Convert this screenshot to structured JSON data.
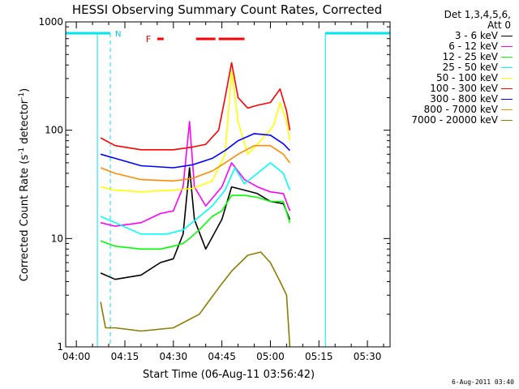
{
  "chart_data": {
    "type": "line",
    "title": "HESSI Observing Summary Count Rates, Corrected",
    "xlabel": "Start Time (06-Aug-11 03:56:42)",
    "ylabel_main": "Corrected Count Rate (s",
    "ylabel_sup1": "-1",
    "ylabel_mid": " detector",
    "ylabel_sup2": "-1",
    "ylabel_end": ")",
    "yscale": "log",
    "ylim": [
      1,
      1000
    ],
    "xlim": [
      "03:56:42",
      "05:37:00"
    ],
    "x_tick_labels": [
      "04:00",
      "04:15",
      "04:30",
      "04:45",
      "05:00",
      "05:15",
      "05:30"
    ],
    "y_tick_labels": [
      "1",
      "10",
      "100",
      "1000"
    ],
    "detector_header": [
      "Det 1,3,4,5,6,",
      "Att 0"
    ],
    "flag_labels": {
      "night": "N",
      "flare": "F"
    },
    "night_intervals": [
      [
        "03:56:42",
        "04:10:30"
      ],
      [
        "05:17:00",
        "05:37:00"
      ]
    ],
    "flare_flag_intervals": [
      [
        "04:25:00",
        "04:27:00"
      ],
      [
        "04:37:00",
        "04:43:00"
      ],
      [
        "04:44:00",
        "04:52:00"
      ]
    ],
    "data_start": "04:07:30",
    "data_end": "05:06:00",
    "series": [
      {
        "name": "3 - 6 keV",
        "color": "#000000",
        "points": [
          [
            "04:07:30",
            4.8
          ],
          [
            "04:12:00",
            4.2
          ],
          [
            "04:20:00",
            4.6
          ],
          [
            "04:26:00",
            6.0
          ],
          [
            "04:30:00",
            6.5
          ],
          [
            "04:33:00",
            11.0
          ],
          [
            "04:35:00",
            45.0
          ],
          [
            "04:36:30",
            15.0
          ],
          [
            "04:40:00",
            8.0
          ],
          [
            "04:45:00",
            15.0
          ],
          [
            "04:48:00",
            30.0
          ],
          [
            "04:52:00",
            28.0
          ],
          [
            "04:56:00",
            26.0
          ],
          [
            "05:00:00",
            22.0
          ],
          [
            "05:04:00",
            21.0
          ],
          [
            "05:06:00",
            15.0
          ]
        ]
      },
      {
        "name": "6 - 12 keV",
        "color": "#ff00ff",
        "points": [
          [
            "04:07:30",
            14.0
          ],
          [
            "04:12:00",
            13.0
          ],
          [
            "04:20:00",
            14.0
          ],
          [
            "04:26:00",
            17.0
          ],
          [
            "04:30:00",
            18.0
          ],
          [
            "04:33:00",
            30.0
          ],
          [
            "04:35:00",
            120.0
          ],
          [
            "04:36:30",
            30.0
          ],
          [
            "04:40:00",
            20.0
          ],
          [
            "04:45:00",
            30.0
          ],
          [
            "04:48:00",
            50.0
          ],
          [
            "04:52:00",
            35.0
          ],
          [
            "04:56:00",
            30.0
          ],
          [
            "05:00:00",
            27.0
          ],
          [
            "05:04:00",
            26.0
          ],
          [
            "05:06:00",
            18.0
          ]
        ]
      },
      {
        "name": "12 - 25 keV",
        "color": "#00ff00",
        "points": [
          [
            "04:07:30",
            9.5
          ],
          [
            "04:12:00",
            8.5
          ],
          [
            "04:20:00",
            8.0
          ],
          [
            "04:26:00",
            8.0
          ],
          [
            "04:30:00",
            8.5
          ],
          [
            "04:33:00",
            9.0
          ],
          [
            "04:35:00",
            10.0
          ],
          [
            "04:38:00",
            12.0
          ],
          [
            "04:42:00",
            16.0
          ],
          [
            "04:45:00",
            18.0
          ],
          [
            "04:48:00",
            25.0
          ],
          [
            "04:52:00",
            25.0
          ],
          [
            "04:56:00",
            24.0
          ],
          [
            "05:00:00",
            22.0
          ],
          [
            "05:04:00",
            22.0
          ],
          [
            "05:06:00",
            14.0
          ]
        ]
      },
      {
        "name": "25 - 50 keV",
        "color": "#00ffff",
        "points": [
          [
            "04:07:30",
            16.0
          ],
          [
            "04:12:00",
            14.0
          ],
          [
            "04:20:00",
            11.0
          ],
          [
            "04:28:00",
            11.0
          ],
          [
            "04:33:00",
            12.0
          ],
          [
            "04:37:00",
            15.0
          ],
          [
            "04:42:00",
            20.0
          ],
          [
            "04:46:00",
            28.0
          ],
          [
            "04:49:00",
            45.0
          ],
          [
            "04:52:00",
            32.0
          ],
          [
            "04:56:00",
            40.0
          ],
          [
            "05:00:00",
            50.0
          ],
          [
            "05:04:00",
            40.0
          ],
          [
            "05:06:00",
            28.0
          ]
        ]
      },
      {
        "name": "50 - 100 keV",
        "color": "#ffff00",
        "points": [
          [
            "04:07:30",
            30.0
          ],
          [
            "04:12:00",
            28.0
          ],
          [
            "04:20:00",
            27.0
          ],
          [
            "04:30:00",
            28.0
          ],
          [
            "04:36:00",
            29.0
          ],
          [
            "04:42:00",
            34.0
          ],
          [
            "04:46:00",
            60.0
          ],
          [
            "04:48:00",
            350.0
          ],
          [
            "04:50:00",
            120.0
          ],
          [
            "04:53:00",
            60.0
          ],
          [
            "04:57:00",
            80.0
          ],
          [
            "05:01:00",
            110.0
          ],
          [
            "05:03:00",
            180.0
          ],
          [
            "05:05:00",
            120.0
          ],
          [
            "05:06:00",
            80.0
          ]
        ]
      },
      {
        "name": "100 - 300 keV",
        "color": "#ff0000",
        "points": [
          [
            "04:07:30",
            85.0
          ],
          [
            "04:12:00",
            72.0
          ],
          [
            "04:20:00",
            66.0
          ],
          [
            "04:30:00",
            66.0
          ],
          [
            "04:36:00",
            70.0
          ],
          [
            "04:40:00",
            74.0
          ],
          [
            "04:44:00",
            100.0
          ],
          [
            "04:46:00",
            200.0
          ],
          [
            "04:48:00",
            420.0
          ],
          [
            "04:50:00",
            200.0
          ],
          [
            "04:53:00",
            160.0
          ],
          [
            "04:56:00",
            170.0
          ],
          [
            "05:00:00",
            180.0
          ],
          [
            "05:03:00",
            240.0
          ],
          [
            "05:05:00",
            150.0
          ],
          [
            "05:06:00",
            100.0
          ]
        ]
      },
      {
        "name": "300 - 800 keV",
        "color": "#0000ff",
        "points": [
          [
            "04:07:30",
            60.0
          ],
          [
            "04:12:00",
            55.0
          ],
          [
            "04:20:00",
            47.0
          ],
          [
            "04:30:00",
            45.0
          ],
          [
            "04:36:00",
            48.0
          ],
          [
            "04:42:00",
            55.0
          ],
          [
            "04:46:00",
            65.0
          ],
          [
            "04:50:00",
            80.0
          ],
          [
            "04:55:00",
            93.0
          ],
          [
            "05:00:00",
            90.0
          ],
          [
            "05:04:00",
            75.0
          ],
          [
            "05:06:00",
            65.0
          ]
        ]
      },
      {
        "name": "800 - 7000 keV",
        "color": "#ff8c00",
        "points": [
          [
            "04:07:30",
            45.0
          ],
          [
            "04:12:00",
            40.0
          ],
          [
            "04:20:00",
            35.0
          ],
          [
            "04:30:00",
            34.0
          ],
          [
            "04:36:00",
            36.0
          ],
          [
            "04:42:00",
            42.0
          ],
          [
            "04:46:00",
            50.0
          ],
          [
            "04:50:00",
            60.0
          ],
          [
            "04:55:00",
            72.0
          ],
          [
            "05:00:00",
            72.0
          ],
          [
            "05:04:00",
            60.0
          ],
          [
            "05:06:00",
            50.0
          ]
        ]
      },
      {
        "name": "7000 - 20000 keV",
        "color": "#8b7d00",
        "points": [
          [
            "04:07:30",
            2.6
          ],
          [
            "04:09:00",
            1.5
          ],
          [
            "04:12:00",
            1.5
          ],
          [
            "04:20:00",
            1.4
          ],
          [
            "04:30:00",
            1.5
          ],
          [
            "04:38:00",
            2.0
          ],
          [
            "04:44:00",
            3.5
          ],
          [
            "04:48:00",
            5.0
          ],
          [
            "04:53:00",
            7.0
          ],
          [
            "04:57:00",
            7.5
          ],
          [
            "05:00:00",
            6.0
          ],
          [
            "05:03:00",
            4.0
          ],
          [
            "05:05:00",
            3.0
          ],
          [
            "05:06:00",
            1.0
          ]
        ]
      }
    ]
  },
  "footer": {
    "date_stamp": "6-Aug-2011 03:40"
  }
}
